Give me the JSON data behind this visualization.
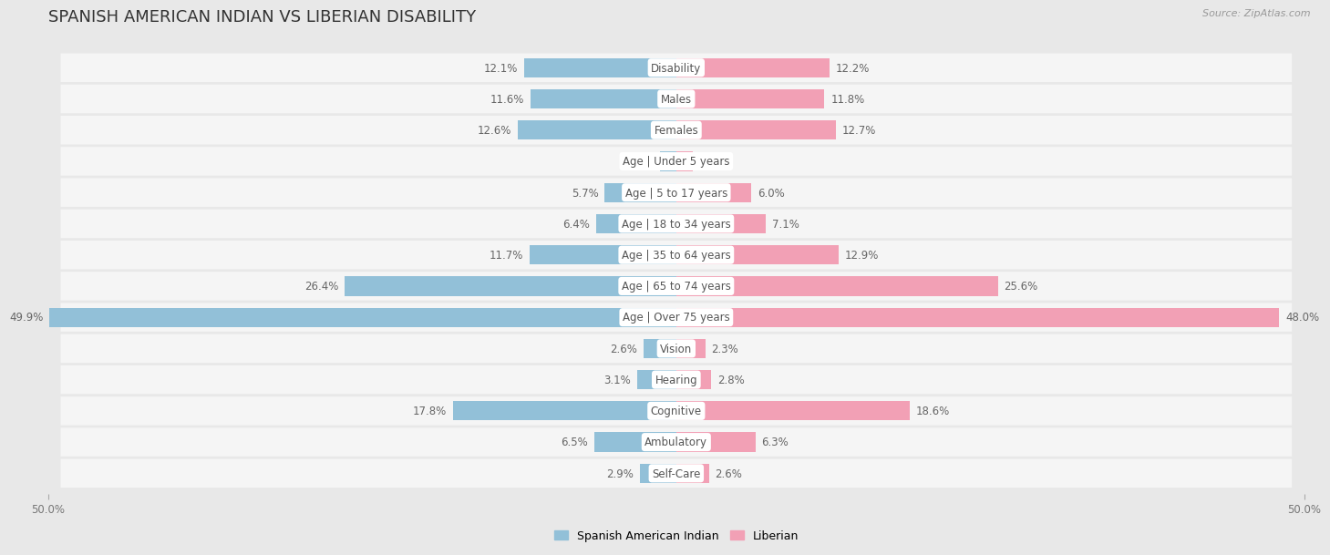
{
  "title": "SPANISH AMERICAN INDIAN VS LIBERIAN DISABILITY",
  "source": "Source: ZipAtlas.com",
  "categories": [
    "Disability",
    "Males",
    "Females",
    "Age | Under 5 years",
    "Age | 5 to 17 years",
    "Age | 18 to 34 years",
    "Age | 35 to 64 years",
    "Age | 65 to 74 years",
    "Age | Over 75 years",
    "Vision",
    "Hearing",
    "Cognitive",
    "Ambulatory",
    "Self-Care"
  ],
  "left_values": [
    12.1,
    11.6,
    12.6,
    1.3,
    5.7,
    6.4,
    11.7,
    26.4,
    49.9,
    2.6,
    3.1,
    17.8,
    6.5,
    2.9
  ],
  "right_values": [
    12.2,
    11.8,
    12.7,
    1.3,
    6.0,
    7.1,
    12.9,
    25.6,
    48.0,
    2.3,
    2.8,
    18.6,
    6.3,
    2.6
  ],
  "left_color": "#92c0d8",
  "right_color": "#f2a0b5",
  "left_label": "Spanish American Indian",
  "right_label": "Liberian",
  "max_val": 50.0,
  "bg_color": "#e8e8e8",
  "row_bg_color": "#f5f5f5",
  "bar_height": 0.62,
  "title_fontsize": 13,
  "label_fontsize": 8.5,
  "value_fontsize": 8.5,
  "axis_label_fontsize": 8.5
}
